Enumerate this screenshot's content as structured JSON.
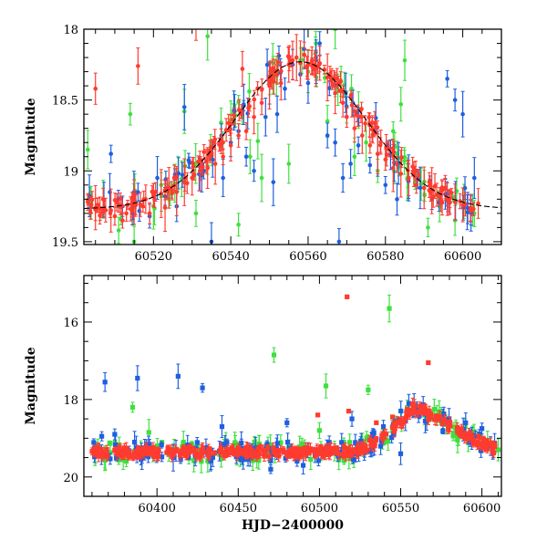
{
  "chart_data": [
    {
      "type": "scatter",
      "ylabel": "Magnitude",
      "xlabel": "",
      "xlim": [
        60502,
        60610
      ],
      "ylim": [
        19.52,
        18.0
      ],
      "y_inverted": true,
      "xticks": [
        60520,
        60540,
        60560,
        60580,
        60600
      ],
      "yticks": [
        18,
        18.5,
        19,
        19.5
      ],
      "colors": {
        "red": "#ff3b2f",
        "green": "#3ee03e",
        "blue": "#1f5fe0",
        "fit": "#000000"
      },
      "fit_curve": {
        "style": "dashed",
        "peak_x": 60558,
        "peak_y": 18.23,
        "base_y": 19.27
      },
      "series": [
        {
          "color": "red",
          "points": [
            [
              60503,
              19.22
            ],
            [
              60505,
              19.26
            ],
            [
              60507,
              19.2
            ],
            [
              60509,
              19.28
            ],
            [
              60511,
              19.24
            ],
            [
              60513,
              19.3
            ],
            [
              60515,
              19.22
            ],
            [
              60516,
              18.26
            ],
            [
              60518,
              19.2
            ],
            [
              60520,
              19.17
            ],
            [
              60522,
              19.16
            ],
            [
              60524,
              19.12
            ],
            [
              60526,
              19.15
            ],
            [
              60528,
              19.08
            ],
            [
              60530,
              19.05
            ],
            [
              60531,
              17.92
            ],
            [
              60532,
              19.0
            ],
            [
              60534,
              18.98
            ],
            [
              60536,
              18.95
            ],
            [
              60538,
              18.9
            ],
            [
              60540,
              18.82
            ],
            [
              60542,
              18.75
            ],
            [
              60543,
              18.28
            ],
            [
              60544,
              18.72
            ],
            [
              60546,
              18.62
            ],
            [
              60548,
              18.52
            ],
            [
              60550,
              18.4
            ],
            [
              60552,
              18.32
            ],
            [
              60553,
              18.38
            ],
            [
              60555,
              18.25
            ],
            [
              60556,
              18.22
            ],
            [
              60557,
              18.2
            ],
            [
              60558,
              18.24
            ],
            [
              60559,
              18.18
            ],
            [
              60560,
              18.25
            ],
            [
              60561,
              18.22
            ],
            [
              60562,
              18.28
            ],
            [
              60563,
              18.24
            ],
            [
              60565,
              18.34
            ],
            [
              60567,
              18.45
            ],
            [
              60569,
              18.52
            ],
            [
              60570,
              18.62
            ],
            [
              60572,
              18.7
            ],
            [
              60574,
              18.75
            ],
            [
              60576,
              18.82
            ],
            [
              60578,
              18.88
            ],
            [
              60580,
              18.92
            ],
            [
              60582,
              18.98
            ],
            [
              60584,
              19.02
            ],
            [
              60586,
              19.05
            ],
            [
              60588,
              19.1
            ],
            [
              60590,
              19.12
            ],
            [
              60592,
              19.14
            ],
            [
              60594,
              19.18
            ],
            [
              60596,
              19.2
            ],
            [
              60598,
              19.22
            ],
            [
              60600,
              19.24
            ],
            [
              60602,
              19.26
            ],
            [
              60604,
              19.23
            ],
            [
              60505,
              18.42
            ],
            [
              60510,
              19.32
            ],
            [
              60512,
              19.35
            ],
            [
              60519,
              19.3
            ],
            [
              60523,
              19.26
            ]
          ]
        },
        {
          "color": "green",
          "points": [
            [
              60503,
              18.85
            ],
            [
              60507,
              19.2
            ],
            [
              60511,
              19.42
            ],
            [
              60514,
              18.6
            ],
            [
              60515,
              19.5
            ],
            [
              60520,
              19.25
            ],
            [
              60522,
              19.1
            ],
            [
              60524,
              19.2
            ],
            [
              60528,
              18.58
            ],
            [
              60531,
              19.3
            ],
            [
              60534,
              18.05
            ],
            [
              60538,
              18.8
            ],
            [
              60542,
              19.38
            ],
            [
              60545,
              18.9
            ],
            [
              60548,
              19.05
            ],
            [
              60552,
              18.3
            ],
            [
              60555,
              18.95
            ],
            [
              60558,
              18.22
            ],
            [
              60560,
              18.3
            ],
            [
              60562,
              18.1
            ],
            [
              60565,
              18.65
            ],
            [
              60567,
              18.0
            ],
            [
              60570,
              18.55
            ],
            [
              60572,
              18.9
            ],
            [
              60575,
              18.8
            ],
            [
              60578,
              19.0
            ],
            [
              60582,
              18.72
            ],
            [
              60585,
              18.22
            ],
            [
              60588,
              19.05
            ],
            [
              60591,
              19.4
            ],
            [
              60594,
              19.25
            ],
            [
              60598,
              19.35
            ],
            [
              60603,
              19.3
            ],
            [
              60540,
              18.64
            ],
            [
              60547,
              18.79
            ],
            [
              60584,
              18.53
            ]
          ]
        },
        {
          "color": "blue",
          "points": [
            [
              60509,
              18.88
            ],
            [
              60512,
              19.25
            ],
            [
              60516,
              19.15
            ],
            [
              60519,
              19.32
            ],
            [
              60521,
              19.05
            ],
            [
              60523,
              19.18
            ],
            [
              60526,
              19.25
            ],
            [
              60528,
              18.55
            ],
            [
              60533,
              19.0
            ],
            [
              60535,
              19.5
            ],
            [
              60538,
              19.05
            ],
            [
              60540,
              18.8
            ],
            [
              60542,
              18.72
            ],
            [
              60544,
              18.9
            ],
            [
              60546,
              19.0
            ],
            [
              60549,
              18.62
            ],
            [
              60550,
              18.38
            ],
            [
              60552,
              18.6
            ],
            [
              60554,
              18.42
            ],
            [
              60556,
              18.25
            ],
            [
              60558,
              18.32
            ],
            [
              60560,
              18.38
            ],
            [
              60562,
              18.2
            ],
            [
              60563,
              18.1
            ],
            [
              60565,
              18.75
            ],
            [
              60567,
              18.8
            ],
            [
              60569,
              19.05
            ],
            [
              60571,
              18.95
            ],
            [
              60573,
              18.82
            ],
            [
              60576,
              18.96
            ],
            [
              60578,
              18.88
            ],
            [
              60580,
              19.1
            ],
            [
              60583,
              19.2
            ],
            [
              60586,
              19.05
            ],
            [
              60589,
              19.12
            ],
            [
              60592,
              19.2
            ],
            [
              60596,
              18.35
            ],
            [
              60598,
              18.5
            ],
            [
              60600,
              18.6
            ],
            [
              60603,
              19.05
            ],
            [
              60568,
              19.5
            ],
            [
              60551,
              19.08
            ]
          ]
        }
      ]
    },
    {
      "type": "scatter",
      "ylabel": "Magnitude",
      "xlabel": "HJD−2400000",
      "xlim": [
        60355,
        60612
      ],
      "ylim": [
        20.5,
        14.8
      ],
      "y_inverted": true,
      "xticks": [
        60400,
        60450,
        60500,
        60550,
        60600
      ],
      "yticks": [
        16,
        18,
        20
      ],
      "colors": {
        "red": "#ff3b2f",
        "green": "#3ee03e",
        "blue": "#1f5fe0"
      },
      "outliers": {
        "red": [
          [
            60517,
            15.35
          ],
          [
            60567,
            17.05
          ],
          [
            60518,
            18.3
          ],
          [
            60535,
            18.6
          ],
          [
            60499,
            18.4
          ],
          [
            60545,
            18.45
          ]
        ],
        "green": [
          [
            60543,
            15.65
          ],
          [
            60472,
            16.85
          ],
          [
            60385,
            18.2
          ],
          [
            60504,
            17.65
          ],
          [
            60530,
            17.75
          ],
          [
            60575,
            18.35
          ],
          [
            60395,
            18.85
          ],
          [
            60460,
            19.1
          ],
          [
            60500,
            18.8
          ],
          [
            60585,
            19.05
          ],
          [
            60610,
            19.3
          ]
        ],
        "blue": [
          [
            60368,
            17.55
          ],
          [
            60388,
            17.45
          ],
          [
            60413,
            17.4
          ],
          [
            60428,
            17.7
          ],
          [
            60410,
            19.5
          ],
          [
            60440,
            18.7
          ],
          [
            60480,
            18.6
          ],
          [
            60520,
            18.5
          ],
          [
            60470,
            19.8
          ],
          [
            60490,
            19.7
          ],
          [
            60550,
            19.4
          ],
          [
            60590,
            18.6
          ],
          [
            60600,
            18.75
          ],
          [
            60555,
            18.1
          ],
          [
            60560,
            18.25
          ],
          [
            60366,
            18.95
          ],
          [
            60374,
            18.9
          ]
        ]
      },
      "baseline": {
        "mag": 19.35,
        "peak_x": 60558,
        "peak_y": 18.2,
        "rise_start": 60518,
        "end_x": 60608,
        "end_mag": 19.3
      }
    }
  ]
}
